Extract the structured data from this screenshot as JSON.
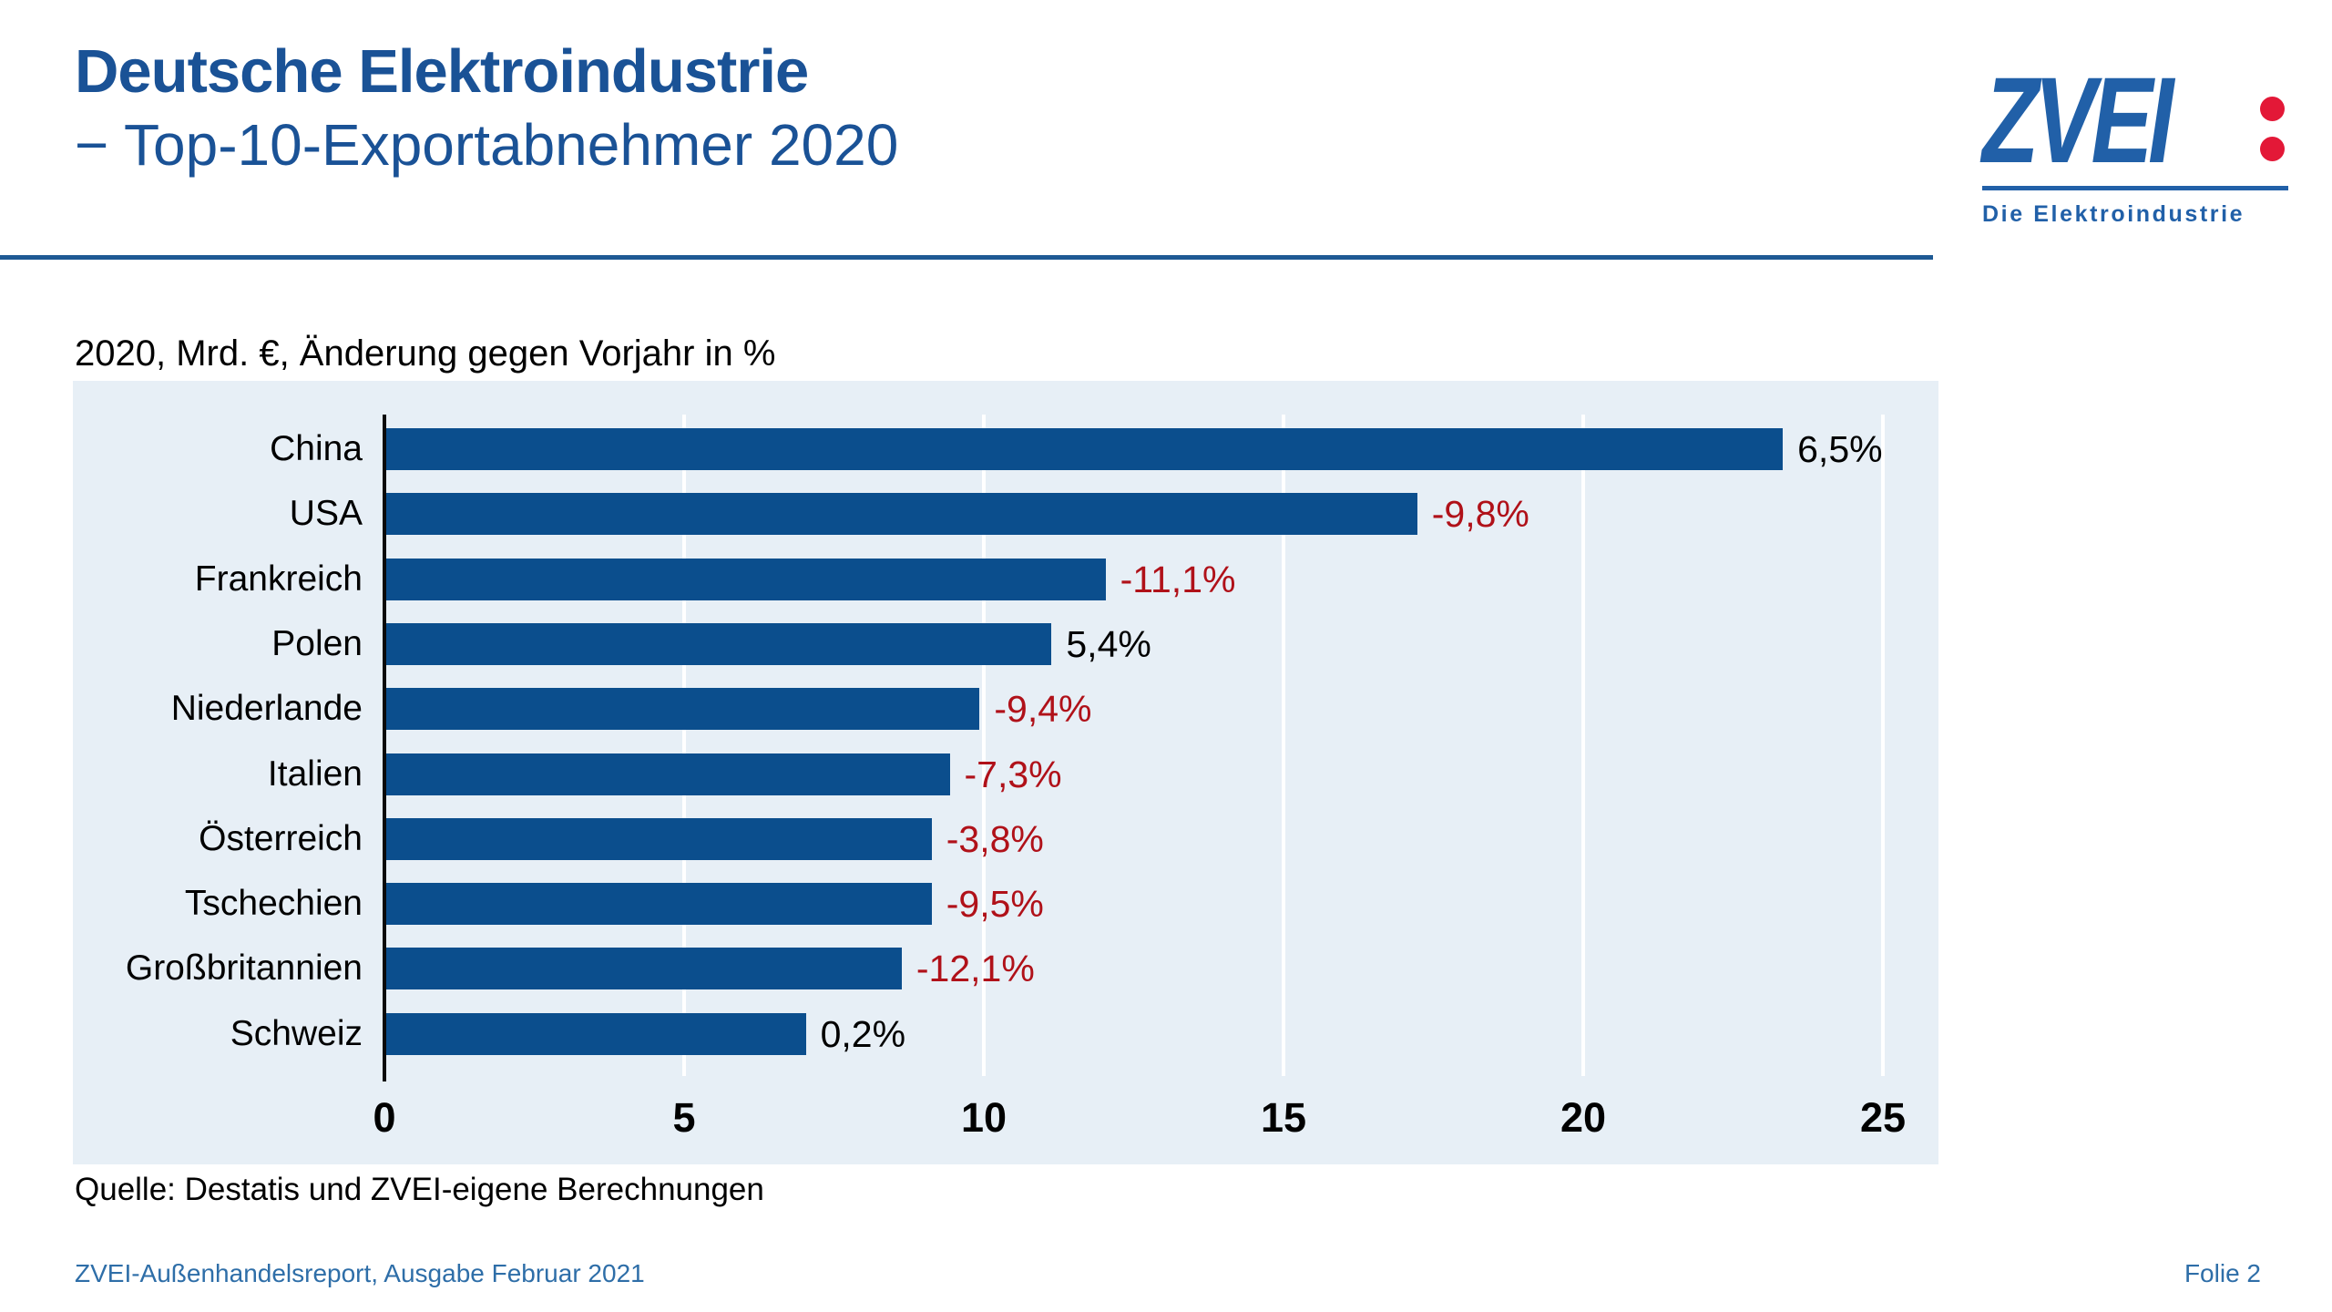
{
  "header": {
    "title": "Deutsche Elektroindustrie",
    "subtitle": "− Top-10-Exportabnehmer 2020"
  },
  "logo": {
    "brand": "ZVEI",
    "tagline": "Die Elektroindustrie",
    "brand_color": "#2160a8",
    "dot_color": "#e31837"
  },
  "chart_data": {
    "type": "bar",
    "orientation": "horizontal",
    "title": "2020, Mrd. €, Änderung gegen Vorjahr in %",
    "categories": [
      "China",
      "USA",
      "Frankreich",
      "Polen",
      "Niederlande",
      "Italien",
      "Österreich",
      "Tschechien",
      "Großbritannien",
      "Schweiz"
    ],
    "values": [
      23.3,
      17.2,
      12.0,
      11.1,
      9.9,
      9.4,
      9.1,
      9.1,
      8.6,
      7.0
    ],
    "value_unit": "Mrd. €",
    "change_labels": [
      "6,5%",
      "-9,8%",
      "-11,1%",
      "5,4%",
      "-9,4%",
      "-7,3%",
      "-3,8%",
      "-9,5%",
      "-12,1%",
      "0,2%"
    ],
    "xlabel": "",
    "ylabel": "",
    "xlim": [
      0,
      25
    ],
    "xticks": [
      0,
      5,
      10,
      15,
      20,
      25
    ],
    "grid": true,
    "grid_color": "#ffffff",
    "plot_bg": "#e7eff6",
    "bar_color": "#0b4e8d",
    "axis_color": "#0a0a0a",
    "positive_label_color": "#000000",
    "negative_label_color": "#b01119",
    "legend": "none"
  },
  "colors": {
    "title_blue": "#1a5296",
    "rule_blue": "#1e5a94",
    "footer_blue": "#2e6ea8"
  },
  "source": "Quelle: Destatis und ZVEI-eigene Berechnungen",
  "footer": {
    "left": "ZVEI-Außenhandelsreport, Ausgabe Februar 2021",
    "right": "Folie 2"
  }
}
